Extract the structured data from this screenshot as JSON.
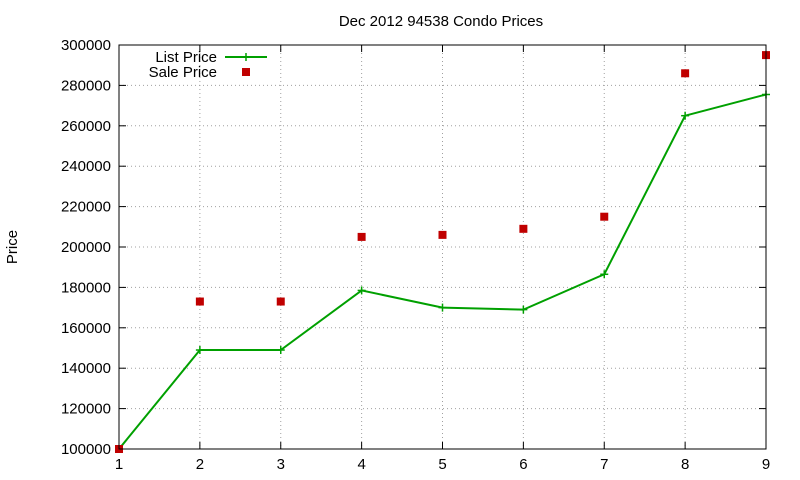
{
  "chart_data": {
    "type": "line",
    "title": "Dec 2012 94538 Condo Prices",
    "xlabel": "",
    "ylabel": "Price",
    "xlim": [
      1,
      9
    ],
    "ylim": [
      100000,
      300000
    ],
    "xticks": [
      1,
      2,
      3,
      4,
      5,
      6,
      7,
      8,
      9
    ],
    "yticks": [
      100000,
      120000,
      140000,
      160000,
      180000,
      200000,
      220000,
      240000,
      260000,
      280000,
      300000
    ],
    "grid": true,
    "legend": "top-left",
    "x": [
      1,
      2,
      3,
      4,
      5,
      6,
      7,
      8,
      9
    ],
    "series": [
      {
        "name": "List Price",
        "style": "line+cross",
        "color": "#00a000",
        "values": [
          100000,
          149000,
          149000,
          178500,
          170000,
          169000,
          186500,
          265000,
          275500
        ]
      },
      {
        "name": "Sale Price",
        "style": "square",
        "color": "#c00000",
        "values": [
          100000,
          173000,
          173000,
          205000,
          206000,
          209000,
          215000,
          286000,
          295000
        ]
      }
    ]
  }
}
